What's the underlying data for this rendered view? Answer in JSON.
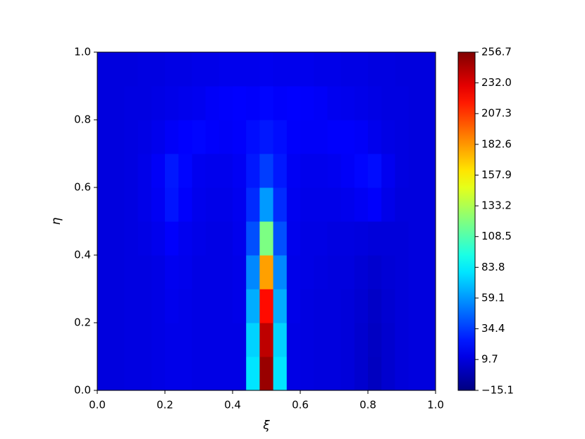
{
  "chart_data": {
    "type": "heatmap",
    "colormap": "jet",
    "xlabel": "ξ",
    "ylabel": "η",
    "xlim": [
      0,
      1
    ],
    "ylim": [
      0,
      1
    ],
    "xticks": [
      {
        "value": 0,
        "label": "0.0"
      },
      0.2,
      0.4,
      0.6,
      0.8,
      {
        "value": 1,
        "label": "1.0"
      }
    ],
    "yticks": [
      {
        "value": 0,
        "label": "0.0"
      },
      0.2,
      0.4,
      0.6,
      0.8,
      {
        "value": 1,
        "label": "1.0"
      }
    ],
    "clim": [
      -15.1,
      256.7
    ],
    "cticks": [
      {
        "value": -15.1,
        "label": "−15.1"
      },
      9.7,
      34.4,
      59.1,
      83.8,
      108.5,
      133.2,
      157.9,
      182.6,
      207.3,
      {
        "value": 232,
        "label": "232.0"
      },
      256.7
    ],
    "x": [
      0.02,
      0.06,
      0.1,
      0.14,
      0.18,
      0.22,
      0.26,
      0.3,
      0.34,
      0.38,
      0.42,
      0.46,
      0.5,
      0.54,
      0.58,
      0.62,
      0.66,
      0.7,
      0.74,
      0.78,
      0.82,
      0.86,
      0.9,
      0.94,
      0.98
    ],
    "y": [
      0.05,
      0.15,
      0.25,
      0.35,
      0.45,
      0.55,
      0.65,
      0.75,
      0.85,
      0.95
    ],
    "z": [
      [
        10,
        10,
        11,
        11,
        12,
        13,
        13,
        12,
        12,
        12,
        12,
        80,
        250,
        80,
        12,
        11,
        10,
        10,
        9,
        6,
        2,
        6,
        9,
        10,
        10
      ],
      [
        10,
        10,
        11,
        11,
        12,
        13,
        13,
        12,
        12,
        12,
        12,
        75,
        240,
        75,
        12,
        11,
        10,
        10,
        9,
        6,
        3,
        6,
        9,
        10,
        10
      ],
      [
        10,
        10,
        11,
        11,
        12,
        14,
        13,
        12,
        12,
        12,
        13,
        65,
        220,
        65,
        13,
        11,
        10,
        10,
        9,
        7,
        4,
        7,
        9,
        10,
        10
      ],
      [
        10,
        10,
        11,
        11,
        12,
        15,
        14,
        12,
        12,
        12,
        13,
        55,
        180,
        55,
        13,
        12,
        11,
        10,
        10,
        8,
        6,
        8,
        9,
        10,
        10
      ],
      [
        10,
        10,
        11,
        12,
        14,
        18,
        15,
        13,
        12,
        12,
        14,
        40,
        120,
        40,
        14,
        12,
        12,
        11,
        11,
        10,
        9,
        9,
        9,
        10,
        10
      ],
      [
        10,
        10,
        11,
        13,
        16,
        24,
        18,
        14,
        13,
        13,
        15,
        30,
        60,
        30,
        15,
        13,
        13,
        13,
        14,
        16,
        18,
        13,
        10,
        10,
        10
      ],
      [
        10,
        10,
        11,
        13,
        17,
        25,
        20,
        15,
        14,
        14,
        16,
        25,
        35,
        25,
        16,
        14,
        14,
        15,
        17,
        20,
        22,
        15,
        11,
        10,
        10
      ],
      [
        10,
        10,
        11,
        12,
        14,
        17,
        19,
        20,
        18,
        17,
        18,
        22,
        25,
        22,
        18,
        17,
        17,
        18,
        18,
        17,
        14,
        12,
        11,
        10,
        10
      ],
      [
        10,
        10,
        11,
        11,
        12,
        13,
        14,
        15,
        17,
        18,
        19,
        18,
        20,
        18,
        19,
        18,
        17,
        15,
        14,
        13,
        12,
        11,
        11,
        10,
        10
      ],
      [
        10,
        10,
        10,
        11,
        11,
        12,
        12,
        13,
        13,
        14,
        14,
        14,
        15,
        14,
        14,
        14,
        13,
        13,
        12,
        12,
        11,
        11,
        10,
        10,
        10
      ]
    ]
  }
}
